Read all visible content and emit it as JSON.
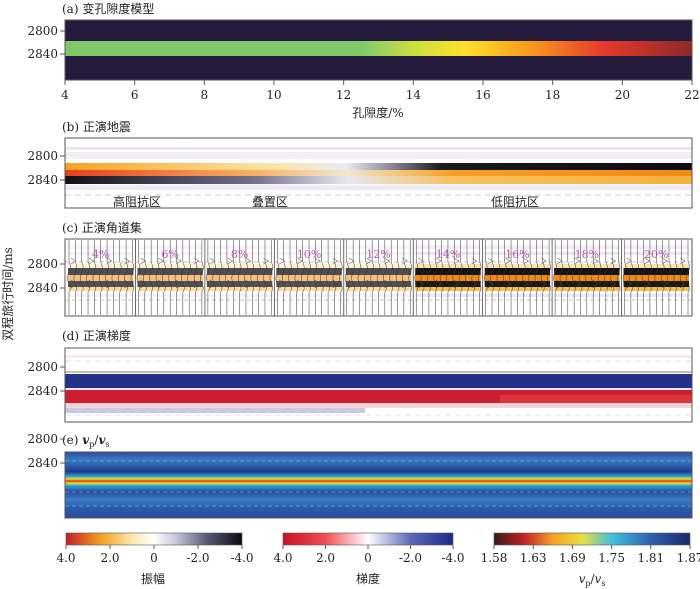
{
  "figure": {
    "y_axis_title": "双程旅行时间/ms",
    "panels": [
      {
        "label": "(a) 变孔隙度模型",
        "yticks": [
          "2800",
          "2840"
        ]
      },
      {
        "label": "(b) 正演地震",
        "yticks": [
          "2800",
          "2840"
        ],
        "zone_labels": [
          "高阻抗区",
          "叠置区",
          "低阻抗区"
        ]
      },
      {
        "label": "(c) 正演角道集",
        "yticks": [
          "2800",
          "2840"
        ],
        "gather_labels": [
          "4%",
          "6%",
          "8%",
          "10%",
          "12%",
          "14%",
          "16%",
          "18%",
          "20%"
        ]
      },
      {
        "label": "(d) 正演梯度",
        "yticks": [
          "2800",
          "2840"
        ]
      },
      {
        "label": "(e) vp/vs",
        "label_prefix": "(e) ",
        "label_var1": "v",
        "label_sub1": "p",
        "label_slash": "/",
        "label_var2": "v",
        "label_sub2": "s",
        "yticks": [
          "2800",
          "2840"
        ]
      }
    ],
    "colorbars": [
      {
        "name": "振幅",
        "ticks": [
          "4.0",
          "2.0",
          "0",
          "-2.0",
          "-4.0"
        ],
        "range": [
          4.0,
          -4.0
        ]
      },
      {
        "name": "梯度",
        "ticks": [
          "4.0",
          "2.0",
          "0",
          "-2.0",
          "-4.0"
        ],
        "range": [
          4.0,
          -4.0
        ]
      },
      {
        "name_var1": "v",
        "name_sub1": "p",
        "name_slash": "/",
        "name_var2": "v",
        "name_sub2": "s",
        "ticks": [
          "1.58",
          "1.63",
          "1.69",
          "1.75",
          "1.81",
          "1.87"
        ],
        "range": [
          1.58,
          1.87
        ]
      }
    ]
  },
  "chart_data": [
    {
      "type": "heatmap",
      "title": "(a) 变孔隙度模型",
      "xlabel": "孔隙度/%",
      "x_ticks": [
        4,
        6,
        8,
        10,
        12,
        14,
        16,
        18,
        20,
        22
      ],
      "xlim": [
        4,
        22
      ],
      "ylabel": "双程旅行时间/ms",
      "y_ticks": [
        2800,
        2840
      ],
      "layer_time_range": [
        2832,
        2848
      ],
      "background": "#231a3c",
      "layer_color_stops": [
        {
          "porosity": 4,
          "color": "#7ec86a"
        },
        {
          "porosity": 12.5,
          "color": "#7ec86a"
        },
        {
          "porosity": 14,
          "color": "#c8e040"
        },
        {
          "porosity": 15.5,
          "color": "#ffe02a"
        },
        {
          "porosity": 17.5,
          "color": "#f7931e"
        },
        {
          "porosity": 19.5,
          "color": "#e8382c"
        },
        {
          "porosity": 21,
          "color": "#b2302a"
        },
        {
          "porosity": 22,
          "color": "#8a2a2a"
        }
      ]
    },
    {
      "type": "heatmap",
      "title": "(b) 正演地震",
      "y_ticks": [
        2800,
        2840
      ],
      "colorbar": "振幅",
      "description_zones": [
        "高阻抗区",
        "叠置区",
        "低阻抗区"
      ]
    },
    {
      "type": "heatmap",
      "title": "(c) 正演角道集",
      "y_ticks": [
        2800,
        2840
      ],
      "gathers_porosity_percent": [
        4,
        6,
        8,
        10,
        12,
        14,
        16,
        18,
        20
      ]
    },
    {
      "type": "heatmap",
      "title": "(d) 正演梯度",
      "y_ticks": [
        2800,
        2840
      ],
      "colorbar": "梯度"
    },
    {
      "type": "heatmap",
      "title": "(e) vp/vs",
      "y_ticks": [
        2800,
        2840
      ],
      "colorbar_range": [
        1.58,
        1.87
      ]
    }
  ]
}
